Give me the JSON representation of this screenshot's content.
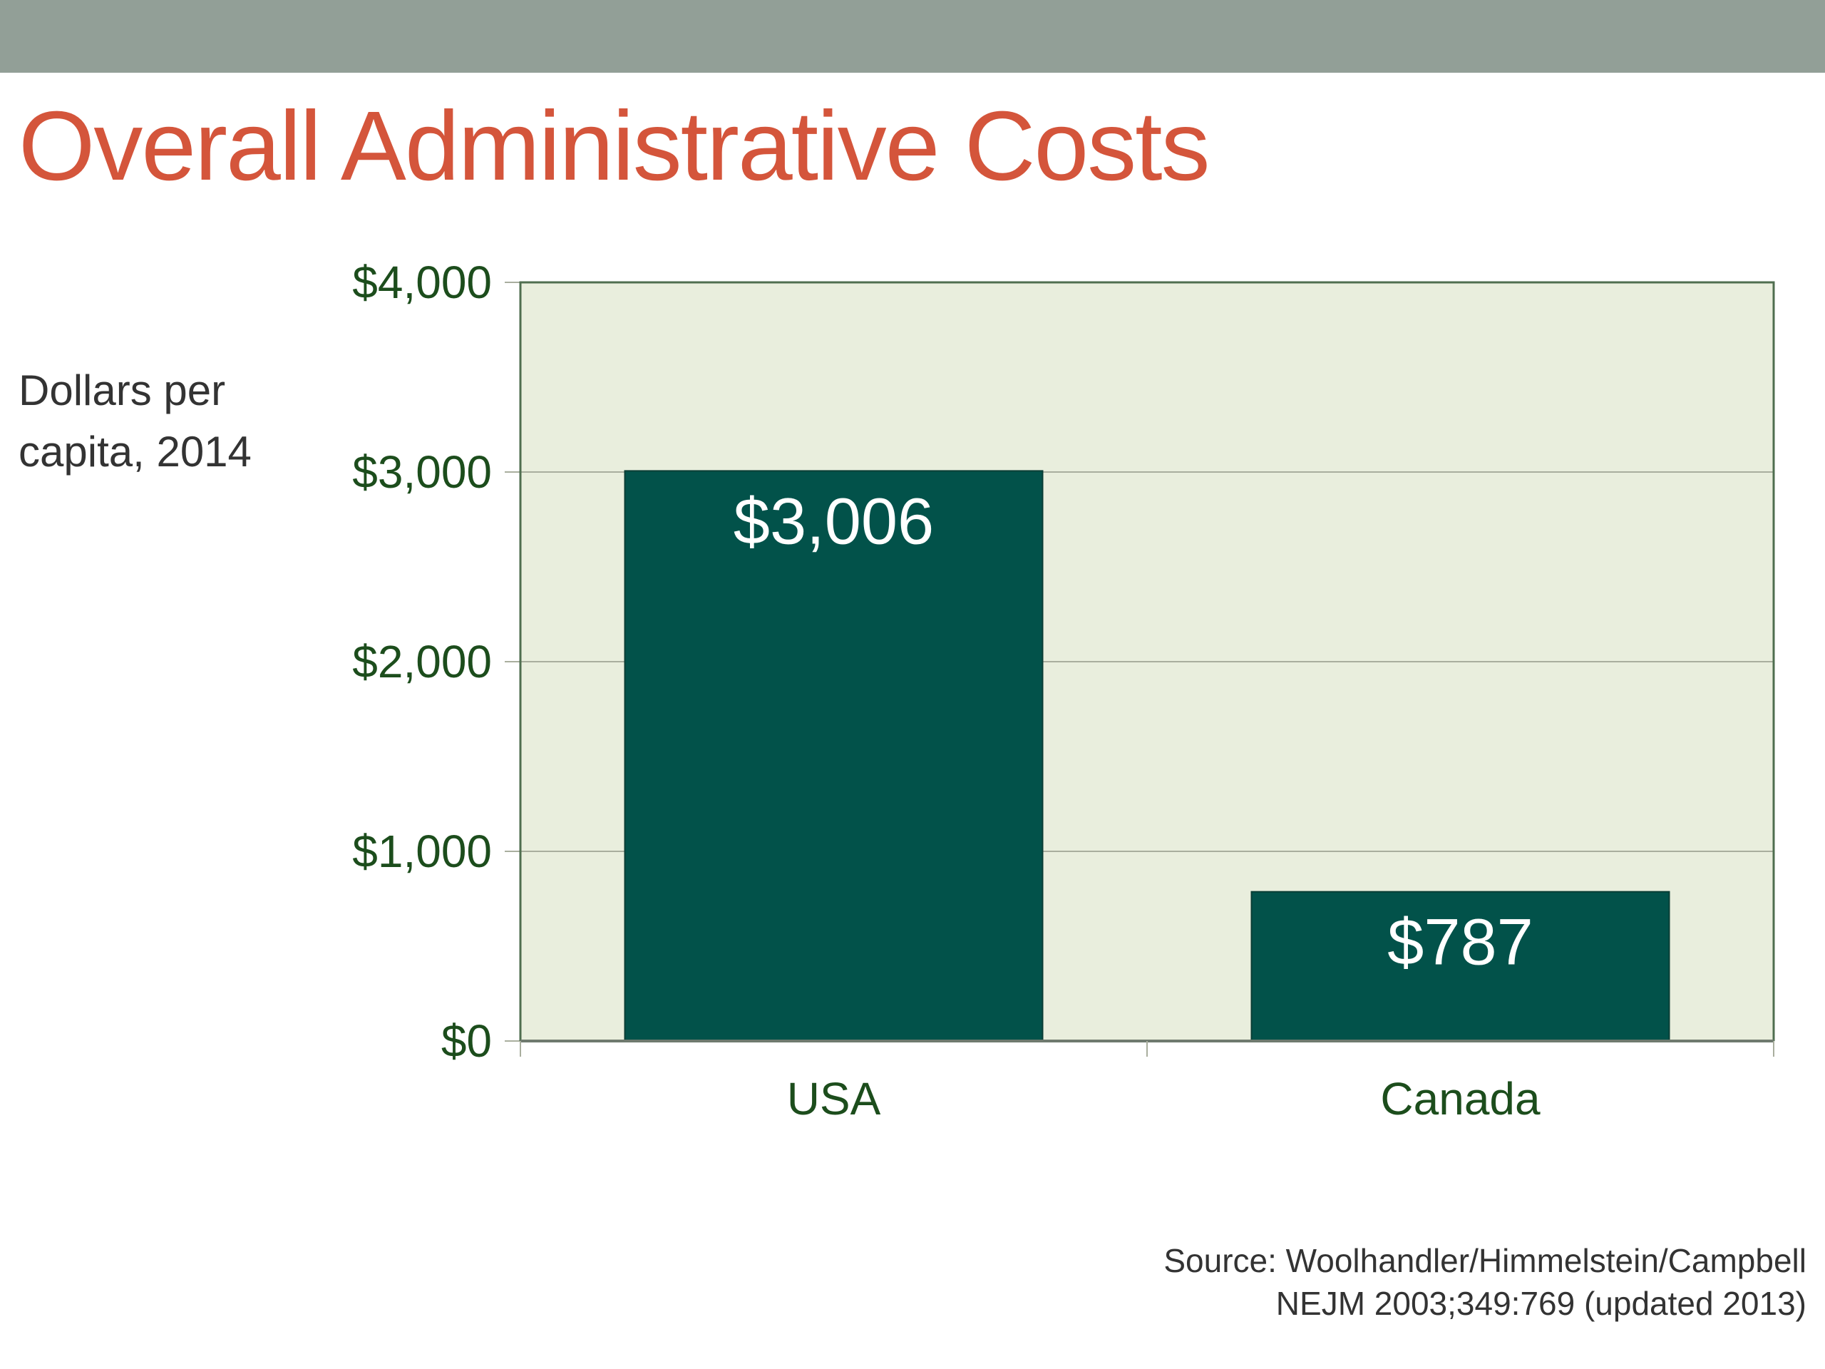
{
  "slide": {
    "title": "Overall Administrative Costs",
    "ylabel_line1": "Dollars per",
    "ylabel_line2": "capita, 2014",
    "source_line1": "Source: Woolhandler/Himmelstein/Campbell",
    "source_line2": "NEJM 2003;349:769 (updated 2013)"
  },
  "colors": {
    "header_bar": "#929f97",
    "title": "#d4553b",
    "bar": "#02524a",
    "plot_background": "#e9eedd",
    "axis_text": "#1c4d1c",
    "gridline": "#a9ae9e"
  },
  "chart_data": {
    "type": "bar",
    "title": "Overall Administrative Costs",
    "xlabel": "",
    "ylabel": "Dollars per capita, 2014",
    "categories": [
      "USA",
      "Canada"
    ],
    "values": [
      3006,
      787
    ],
    "value_labels": [
      "$3,006",
      "$787"
    ],
    "ylim": [
      0,
      4000
    ],
    "yticks": [
      0,
      1000,
      2000,
      3000,
      4000
    ],
    "ytick_labels": [
      "$0",
      "$1,000",
      "$2,000",
      "$3,000",
      "$4,000"
    ],
    "grid": true,
    "legend": "none"
  }
}
